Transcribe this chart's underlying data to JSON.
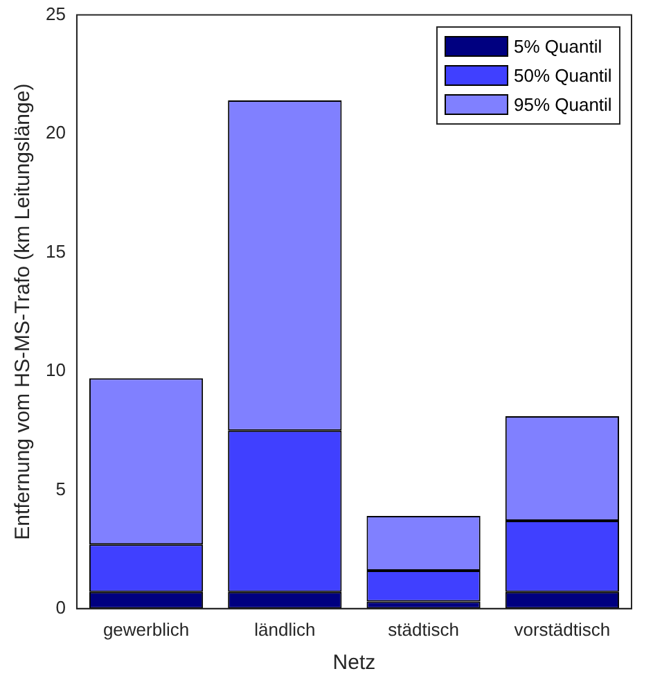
{
  "chart_data": {
    "type": "bar",
    "stacked": true,
    "xlabel": "Netz",
    "ylabel": "Entfernung vom HS-MS-Trafo (km Leitungslänge)",
    "categories": [
      "gewerblich",
      "ländlich",
      "städtisch",
      "vorstädtisch"
    ],
    "series": [
      {
        "name": "5% Quantil",
        "color": "#000080",
        "values": [
          0.7,
          0.7,
          0.3,
          0.7
        ]
      },
      {
        "name": "50% Quantil",
        "color": "#4040ff",
        "values": [
          2.0,
          6.8,
          1.3,
          3.0
        ]
      },
      {
        "name": "95% Quantil",
        "color": "#8080ff",
        "values": [
          7.0,
          13.9,
          2.3,
          4.4
        ]
      }
    ],
    "ylim": [
      0,
      25
    ],
    "yticks": [
      0,
      5,
      10,
      15,
      20,
      25
    ],
    "grid": false,
    "legend": "top right"
  }
}
